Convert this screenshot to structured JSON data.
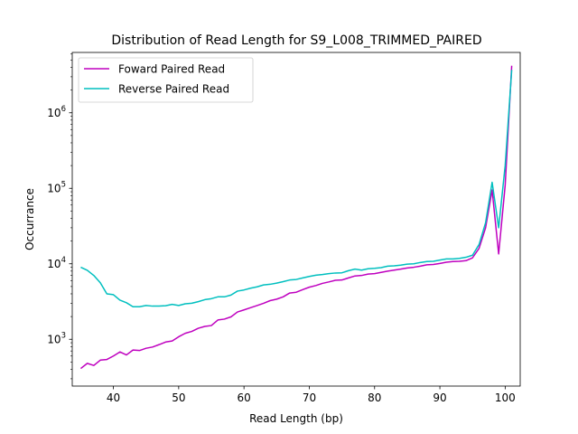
{
  "chart_data": {
    "type": "line",
    "title": "Distribution of Read Length for S9_L008_TRIMMED_PAIRED",
    "xlabel": "Read Length (bp)",
    "ylabel": "Occurrance",
    "xlim": [
      33.7,
      102.3
    ],
    "ylim": [
      240,
      6300000
    ],
    "yscale": "log",
    "grid": false,
    "legend_location": "upper left",
    "x_ticks": [
      {
        "value": 40,
        "label": "40"
      },
      {
        "value": 50,
        "label": "50"
      },
      {
        "value": 60,
        "label": "60"
      },
      {
        "value": 70,
        "label": "70"
      },
      {
        "value": 80,
        "label": "80"
      },
      {
        "value": 90,
        "label": "90"
      },
      {
        "value": 100,
        "label": "100"
      }
    ],
    "y_ticks": [
      {
        "value": 1000,
        "base": "10",
        "exp": "3"
      },
      {
        "value": 10000,
        "base": "10",
        "exp": "4"
      },
      {
        "value": 100000,
        "base": "10",
        "exp": "5"
      },
      {
        "value": 1000000,
        "base": "10",
        "exp": "6"
      }
    ],
    "x": [
      35,
      36,
      37,
      38,
      39,
      40,
      41,
      42,
      43,
      44,
      45,
      46,
      47,
      48,
      49,
      50,
      51,
      52,
      53,
      54,
      55,
      56,
      57,
      58,
      59,
      60,
      61,
      62,
      63,
      64,
      65,
      66,
      67,
      68,
      69,
      70,
      71,
      72,
      73,
      74,
      75,
      76,
      77,
      78,
      79,
      80,
      81,
      82,
      83,
      84,
      85,
      86,
      87,
      88,
      89,
      90,
      91,
      92,
      93,
      94,
      95,
      96,
      97,
      98,
      99,
      100,
      101
    ],
    "series": [
      {
        "name": "Foward Paired Read",
        "color": "#bf00bf",
        "values": [
          410,
          480,
          450,
          530,
          540,
          600,
          680,
          620,
          720,
          710,
          760,
          790,
          850,
          920,
          950,
          1080,
          1200,
          1270,
          1400,
          1480,
          1520,
          1800,
          1850,
          1980,
          2300,
          2450,
          2620,
          2800,
          3000,
          3250,
          3400,
          3650,
          4100,
          4200,
          4550,
          4900,
          5150,
          5500,
          5750,
          6050,
          6100,
          6500,
          6900,
          7000,
          7300,
          7400,
          7700,
          8000,
          8250,
          8500,
          8800,
          9000,
          9300,
          9700,
          9800,
          10100,
          10500,
          10700,
          10800,
          11000,
          12000,
          16000,
          30000,
          95000,
          13500,
          110000,
          4200000
        ]
      },
      {
        "name": "Reverse Paired Read",
        "color": "#00bfbf",
        "values": [
          9000,
          8200,
          7000,
          5600,
          4000,
          3900,
          3300,
          3050,
          2700,
          2700,
          2800,
          2750,
          2750,
          2780,
          2900,
          2800,
          2950,
          3000,
          3150,
          3350,
          3450,
          3650,
          3650,
          3850,
          4350,
          4500,
          4750,
          4950,
          5250,
          5350,
          5550,
          5800,
          6100,
          6200,
          6500,
          6800,
          7050,
          7200,
          7400,
          7550,
          7600,
          8100,
          8500,
          8250,
          8600,
          8700,
          8900,
          9300,
          9400,
          9600,
          9900,
          10000,
          10400,
          10700,
          10800,
          11200,
          11600,
          11600,
          11800,
          12200,
          13000,
          18000,
          35000,
          120000,
          30000,
          200000,
          3700000
        ]
      }
    ]
  }
}
